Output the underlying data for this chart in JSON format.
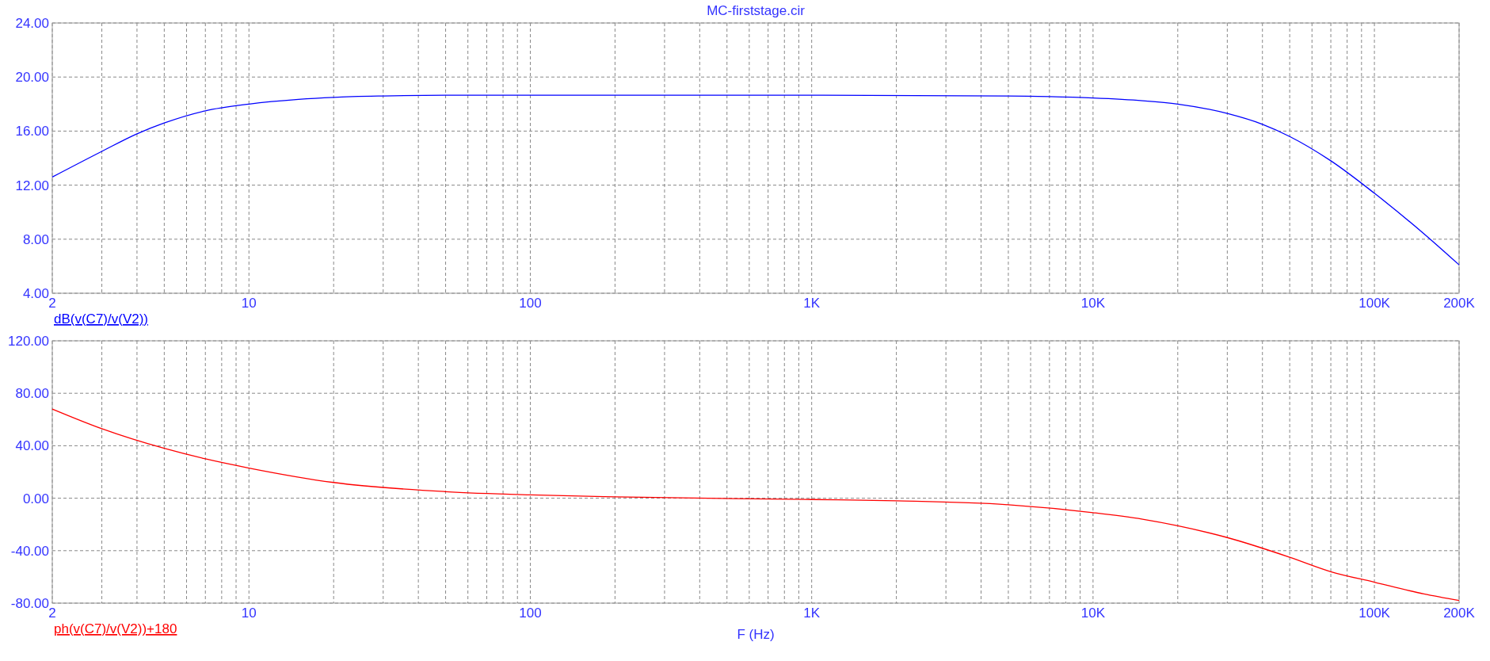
{
  "chart_data": [
    {
      "type": "line",
      "title": "MC-firststage.cir",
      "log": "x",
      "grid": true,
      "xlim": [
        2,
        200000
      ],
      "ylim": [
        4,
        24
      ],
      "xticks": [
        2,
        {
          "value": 3,
          "label": null
        },
        {
          "value": 4,
          "label": null
        },
        {
          "value": 5,
          "label": null
        },
        {
          "value": 6,
          "label": null
        },
        {
          "value": 7,
          "label": null
        },
        {
          "value": 8,
          "label": null
        },
        {
          "value": 9,
          "label": null
        },
        10,
        {
          "value": 20,
          "label": null
        },
        {
          "value": 30,
          "label": null
        },
        {
          "value": 40,
          "label": null
        },
        {
          "value": 50,
          "label": null
        },
        {
          "value": 60,
          "label": null
        },
        {
          "value": 70,
          "label": null
        },
        {
          "value": 80,
          "label": null
        },
        {
          "value": 90,
          "label": null
        },
        100,
        {
          "value": 200,
          "label": null
        },
        {
          "value": 300,
          "label": null
        },
        {
          "value": 400,
          "label": null
        },
        {
          "value": 500,
          "label": null
        },
        {
          "value": 600,
          "label": null
        },
        {
          "value": 700,
          "label": null
        },
        {
          "value": 800,
          "label": null
        },
        {
          "value": 900,
          "label": null
        },
        {
          "value": 1000,
          "label": "1K"
        },
        {
          "value": 2000,
          "label": null
        },
        {
          "value": 3000,
          "label": null
        },
        {
          "value": 4000,
          "label": null
        },
        {
          "value": 5000,
          "label": null
        },
        {
          "value": 6000,
          "label": null
        },
        {
          "value": 7000,
          "label": null
        },
        {
          "value": 8000,
          "label": null
        },
        {
          "value": 9000,
          "label": null
        },
        {
          "value": 10000,
          "label": "10K"
        },
        {
          "value": 20000,
          "label": null
        },
        {
          "value": 30000,
          "label": null
        },
        {
          "value": 40000,
          "label": null
        },
        {
          "value": 50000,
          "label": null
        },
        {
          "value": 60000,
          "label": null
        },
        {
          "value": 70000,
          "label": null
        },
        {
          "value": 80000,
          "label": null
        },
        {
          "value": 90000,
          "label": null
        },
        {
          "value": 100000,
          "label": "100K"
        },
        {
          "value": 200000,
          "label": "200K"
        }
      ],
      "yticks": [
        {
          "value": 4,
          "label": "4.00"
        },
        {
          "value": 8,
          "label": "8.00"
        },
        {
          "value": 12,
          "label": "12.00"
        },
        {
          "value": 16,
          "label": "16.00"
        },
        {
          "value": 20,
          "label": "20.00"
        },
        {
          "value": 24,
          "label": "24.00"
        }
      ],
      "series": [
        {
          "name": "dB(v(C7)/v(V2))",
          "color": "#0000ff",
          "x": [
            2,
            3,
            4,
            5,
            7,
            10,
            15,
            20,
            30,
            50,
            100,
            1000,
            5000,
            7000,
            10000,
            15000,
            20000,
            30000,
            40000,
            50000,
            70000,
            100000,
            150000,
            200000
          ],
          "values": [
            12.6,
            14.5,
            15.8,
            16.6,
            17.5,
            18.0,
            18.35,
            18.5,
            18.6,
            18.65,
            18.65,
            18.65,
            18.6,
            18.55,
            18.45,
            18.25,
            18.0,
            17.3,
            16.5,
            15.6,
            13.8,
            11.4,
            8.4,
            6.1
          ]
        }
      ]
    },
    {
      "type": "line",
      "xlabel": "F (Hz)",
      "log": "x",
      "grid": true,
      "xlim": [
        2,
        200000
      ],
      "ylim": [
        -80,
        120
      ],
      "xticks": [
        2,
        {
          "value": 3,
          "label": null
        },
        {
          "value": 4,
          "label": null
        },
        {
          "value": 5,
          "label": null
        },
        {
          "value": 6,
          "label": null
        },
        {
          "value": 7,
          "label": null
        },
        {
          "value": 8,
          "label": null
        },
        {
          "value": 9,
          "label": null
        },
        10,
        {
          "value": 20,
          "label": null
        },
        {
          "value": 30,
          "label": null
        },
        {
          "value": 40,
          "label": null
        },
        {
          "value": 50,
          "label": null
        },
        {
          "value": 60,
          "label": null
        },
        {
          "value": 70,
          "label": null
        },
        {
          "value": 80,
          "label": null
        },
        {
          "value": 90,
          "label": null
        },
        100,
        {
          "value": 200,
          "label": null
        },
        {
          "value": 300,
          "label": null
        },
        {
          "value": 400,
          "label": null
        },
        {
          "value": 500,
          "label": null
        },
        {
          "value": 600,
          "label": null
        },
        {
          "value": 700,
          "label": null
        },
        {
          "value": 800,
          "label": null
        },
        {
          "value": 900,
          "label": null
        },
        {
          "value": 1000,
          "label": "1K"
        },
        {
          "value": 2000,
          "label": null
        },
        {
          "value": 3000,
          "label": null
        },
        {
          "value": 4000,
          "label": null
        },
        {
          "value": 5000,
          "label": null
        },
        {
          "value": 6000,
          "label": null
        },
        {
          "value": 7000,
          "label": null
        },
        {
          "value": 8000,
          "label": null
        },
        {
          "value": 9000,
          "label": null
        },
        {
          "value": 10000,
          "label": "10K"
        },
        {
          "value": 20000,
          "label": null
        },
        {
          "value": 30000,
          "label": null
        },
        {
          "value": 40000,
          "label": null
        },
        {
          "value": 50000,
          "label": null
        },
        {
          "value": 60000,
          "label": null
        },
        {
          "value": 70000,
          "label": null
        },
        {
          "value": 80000,
          "label": null
        },
        {
          "value": 90000,
          "label": null
        },
        {
          "value": 100000,
          "label": "100K"
        },
        {
          "value": 200000,
          "label": "200K"
        }
      ],
      "yticks": [
        {
          "value": -80,
          "label": "-80.00"
        },
        {
          "value": -40,
          "label": "-40.00"
        },
        {
          "value": 0,
          "label": "0.00"
        },
        {
          "value": 40,
          "label": "40.00"
        },
        {
          "value": 80,
          "label": "80.00"
        },
        {
          "value": 120,
          "label": "120.00"
        }
      ],
      "series": [
        {
          "name": "ph(v(C7)/v(V2))+180",
          "color": "#ff0000",
          "x": [
            2,
            3,
            5,
            7,
            10,
            20,
            50,
            100,
            200,
            1000,
            2000,
            5000,
            10000,
            15000,
            20000,
            30000,
            50000,
            70000,
            100000,
            150000,
            200000
          ],
          "values": [
            68,
            53,
            38,
            30,
            23,
            12,
            5,
            2.5,
            1,
            -1,
            -2,
            -5,
            -11,
            -16,
            -21,
            -30,
            -45,
            -56,
            -64,
            -73,
            -78
          ]
        }
      ]
    }
  ]
}
